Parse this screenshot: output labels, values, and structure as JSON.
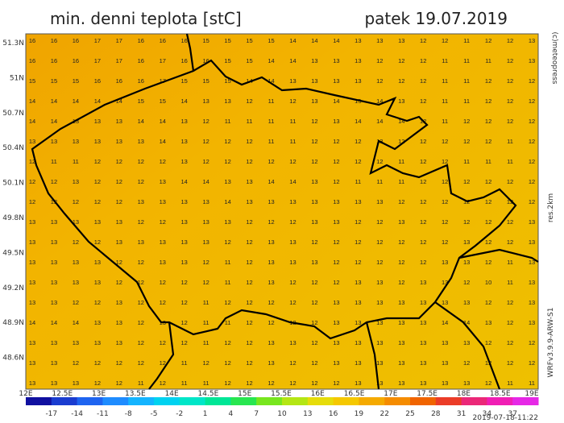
{
  "header": {
    "title": "min. denni teplota [stC]",
    "date": "patek 19.07.2019",
    "copyright": "(c)meteopress",
    "resolution": "res.2km",
    "model": "WRFv3.9.9-ARW-S1",
    "issued": "2019-07-18-11:22"
  },
  "map": {
    "lat_labels": [
      "51.3N",
      "51N",
      "50.7N",
      "50.4N",
      "50.1N",
      "49.8N",
      "49.5N",
      "49.2N",
      "48.9N",
      "48.6N"
    ],
    "lon_labels": [
      "12E",
      "12.5E",
      "13E",
      "13.5E",
      "14E",
      "14.5E",
      "15E",
      "15.5E",
      "16E",
      "16.5E",
      "17E",
      "17.5E",
      "18E",
      "18.5E",
      "19E"
    ],
    "grid": [
      [
        16,
        16,
        16,
        17,
        17,
        16,
        16,
        16,
        15,
        15,
        15,
        15,
        14,
        14,
        14,
        13,
        13,
        13,
        12,
        12,
        11,
        12,
        12,
        13
      ],
      [
        16,
        16,
        16,
        17,
        17,
        16,
        17,
        16,
        16,
        15,
        15,
        14,
        14,
        13,
        13,
        13,
        12,
        12,
        12,
        11,
        11,
        11,
        12,
        13
      ],
      [
        15,
        15,
        15,
        16,
        16,
        16,
        17,
        15,
        15,
        15,
        14,
        14,
        13,
        13,
        13,
        13,
        12,
        12,
        12,
        11,
        11,
        12,
        12,
        12
      ],
      [
        14,
        14,
        14,
        14,
        14,
        15,
        15,
        14,
        13,
        13,
        12,
        11,
        12,
        13,
        14,
        15,
        14,
        13,
        12,
        11,
        11,
        12,
        12,
        12
      ],
      [
        14,
        14,
        13,
        13,
        13,
        14,
        14,
        13,
        12,
        11,
        11,
        11,
        11,
        12,
        13,
        14,
        14,
        14,
        12,
        11,
        12,
        12,
        12,
        12
      ],
      [
        13,
        13,
        13,
        13,
        13,
        13,
        14,
        13,
        12,
        12,
        12,
        11,
        11,
        12,
        12,
        12,
        13,
        12,
        12,
        12,
        12,
        12,
        11,
        12
      ],
      [
        12,
        11,
        11,
        12,
        12,
        12,
        12,
        13,
        12,
        12,
        12,
        12,
        12,
        12,
        12,
        12,
        12,
        11,
        12,
        12,
        11,
        11,
        11,
        12
      ],
      [
        12,
        12,
        13,
        12,
        12,
        12,
        13,
        14,
        14,
        13,
        13,
        14,
        14,
        13,
        12,
        11,
        11,
        11,
        12,
        12,
        12,
        12,
        12,
        12
      ],
      [
        12,
        12,
        12,
        12,
        12,
        13,
        13,
        13,
        13,
        14,
        13,
        13,
        13,
        13,
        13,
        13,
        13,
        12,
        12,
        12,
        12,
        12,
        12,
        12
      ],
      [
        13,
        13,
        13,
        13,
        13,
        12,
        12,
        13,
        13,
        13,
        12,
        12,
        12,
        13,
        13,
        12,
        12,
        13,
        12,
        12,
        12,
        12,
        12,
        13
      ],
      [
        13,
        13,
        12,
        12,
        13,
        13,
        13,
        13,
        13,
        12,
        12,
        13,
        13,
        12,
        12,
        12,
        12,
        12,
        12,
        12,
        13,
        12,
        12,
        13
      ],
      [
        13,
        13,
        13,
        13,
        12,
        12,
        13,
        13,
        12,
        11,
        12,
        13,
        13,
        13,
        12,
        12,
        12,
        12,
        12,
        13,
        13,
        12,
        11,
        13
      ],
      [
        13,
        13,
        13,
        13,
        12,
        12,
        12,
        12,
        12,
        11,
        12,
        13,
        12,
        12,
        12,
        13,
        13,
        12,
        13,
        13,
        12,
        10,
        11,
        13
      ],
      [
        13,
        13,
        12,
        12,
        13,
        12,
        12,
        12,
        11,
        12,
        12,
        12,
        12,
        12,
        13,
        13,
        13,
        13,
        13,
        13,
        13,
        12,
        12,
        13
      ],
      [
        14,
        14,
        14,
        13,
        13,
        12,
        13,
        12,
        11,
        11,
        12,
        12,
        12,
        12,
        13,
        13,
        13,
        13,
        13,
        14,
        14,
        13,
        12,
        13
      ],
      [
        13,
        13,
        13,
        13,
        13,
        12,
        12,
        12,
        11,
        12,
        12,
        13,
        13,
        12,
        13,
        13,
        13,
        13,
        13,
        13,
        13,
        12,
        12,
        12
      ],
      [
        13,
        13,
        12,
        12,
        12,
        12,
        12,
        11,
        12,
        12,
        12,
        13,
        12,
        12,
        13,
        13,
        13,
        13,
        13,
        13,
        12,
        12,
        12,
        12
      ],
      [
        13,
        13,
        13,
        12,
        12,
        11,
        12,
        11,
        11,
        12,
        12,
        12,
        12,
        12,
        12,
        13,
        13,
        13,
        13,
        13,
        13,
        12,
        11,
        11
      ]
    ]
  },
  "colorbar": {
    "ticks": [
      -17,
      -14,
      -11,
      -8,
      -5,
      -2,
      1,
      4,
      7,
      10,
      13,
      16,
      19,
      22,
      25,
      28,
      31,
      34,
      37
    ],
    "colors": [
      "#1010a0",
      "#1a3cd0",
      "#1e64f0",
      "#1e8cff",
      "#14b4ff",
      "#00d2f0",
      "#00e6c8",
      "#00e696",
      "#28e650",
      "#78e61e",
      "#b4e614",
      "#e6dc0a",
      "#f5c800",
      "#f5aa00",
      "#f58c00",
      "#f06400",
      "#eb3c28",
      "#eb2878",
      "#f01eb4",
      "#e628e6"
    ]
  }
}
